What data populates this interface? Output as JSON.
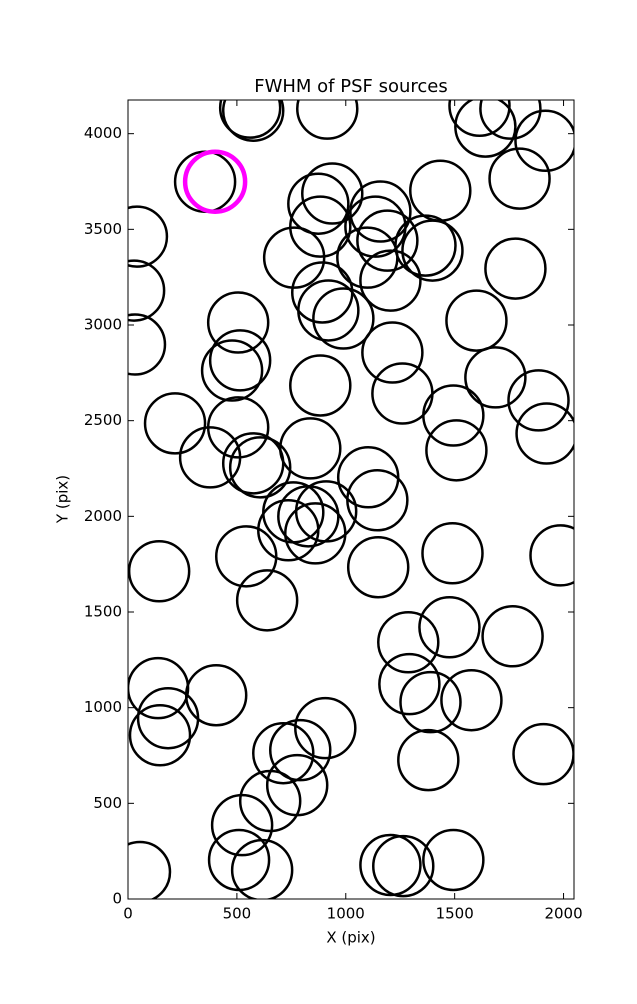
{
  "chart_data": {
    "type": "scatter",
    "title": "FWHM of PSF sources",
    "x_label": "X (pix)",
    "y_label": "Y (pix)",
    "xlim": [
      0,
      2048
    ],
    "ylim": [
      0,
      4176
    ],
    "xticks": [
      0,
      500,
      1000,
      1500,
      2000
    ],
    "yticks": [
      0,
      500,
      1000,
      1500,
      2000,
      2500,
      3000,
      3500,
      4000
    ],
    "grid": false,
    "series": [
      {
        "color": "#000000",
        "x": [
          41,
          28,
          32,
          354,
          561,
          575,
          915,
          763,
          874,
          938,
          883,
          1159,
          1136,
          1099,
          1191,
          1205,
          1366,
          1398,
          1434,
          892,
          920,
          989,
          506,
          515,
          478,
          883,
          1214,
          1260,
          1600,
          1687,
          1494,
          1508,
          1885,
          1922,
          1779,
          1798,
          1917,
          1641,
          1614,
          1756,
          216,
          506,
          377,
          575,
          607,
          837,
          1103,
          1145,
          759,
          828,
          736,
          860,
          910,
          143,
          543,
          1149,
          1490,
          1986,
          639,
          1287,
          1476,
          1766,
          138,
          184,
          147,
          405,
          1292,
          1389,
          1577,
          906,
          713,
          791,
          777,
          653,
          524,
          510,
          616,
          55,
          1205,
          1264,
          1494,
          1379,
          1908
        ],
        "values": [
          3462,
          3180,
          2898,
          3749,
          4136,
          4120,
          4131,
          3352,
          3634,
          3687,
          3514,
          3593,
          3514,
          3352,
          3441,
          3232,
          3415,
          3389,
          3702,
          3170,
          3076,
          3034,
          3013,
          2815,
          2762,
          2684,
          2856,
          2642,
          3023,
          2726,
          2527,
          2345,
          2606,
          2433,
          3295,
          3765,
          3963,
          4037,
          4146,
          4131,
          2486,
          2465,
          2308,
          2277,
          2256,
          2355,
          2204,
          2084,
          2021,
          2000,
          1927,
          1911,
          2026,
          1713,
          1791,
          1734,
          1807,
          1796,
          1561,
          1342,
          1420,
          1373,
          1102,
          945,
          856,
          1065,
          1123,
          1029,
          1039,
          893,
          762,
          778,
          595,
          512,
          386,
          204,
          151,
          141,
          178,
          172,
          204,
          726,
          757
        ]
      },
      {
        "color": "#ff00ff",
        "x": [
          400
        ],
        "values": [
          3749
        ]
      }
    ]
  }
}
